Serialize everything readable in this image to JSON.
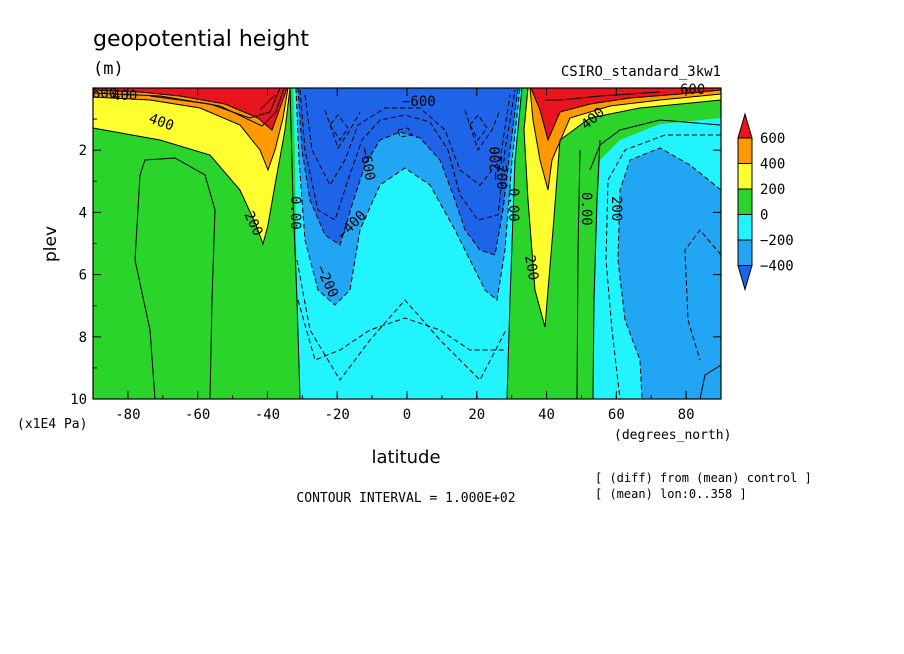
{
  "chart_data": {
    "type": "contour",
    "title": "geopotential height",
    "units": "(m)",
    "model": "CSIRO_standard_3kw1",
    "xlabel": "latitude",
    "x_units": "(degrees_north)",
    "ylabel": "plev",
    "y_units": "(x1E4 Pa)",
    "xlim": [
      -90,
      90
    ],
    "ylim": [
      10,
      0
    ],
    "x_ticks": [
      -80,
      -60,
      -40,
      -20,
      0,
      20,
      40,
      60,
      80
    ],
    "x_tick_labels": [
      "-80",
      "-60",
      "-40",
      "-20",
      "0",
      "20",
      "40",
      "60",
      "80"
    ],
    "y_ticks": [
      2,
      4,
      6,
      8,
      10
    ],
    "y_tick_labels": [
      "2",
      "4",
      "6",
      "8",
      "10"
    ],
    "contour_interval_text": "CONTOUR INTERVAL = 1.000E+02",
    "notes": [
      "[ (diff) from (mean) control ]",
      "[ (mean) lon:0..358 ]"
    ],
    "colorbar": {
      "labels": [
        "600",
        "400",
        "200",
        "0",
        "−200",
        "−400"
      ],
      "colors": [
        "#e8141e",
        "#ff9900",
        "#ffff30",
        "#2ad42a",
        "#22f4ff",
        "#22a6f4",
        "#1e64e8"
      ]
    },
    "contour_labels": [
      "600",
      "400",
      "400",
      "200",
      "0.00",
      "−600",
      "−600",
      "−400",
      "−200",
      "−200",
      "−200",
      "0.00",
      "400",
      "200",
      "0.00",
      "200",
      "600"
    ]
  }
}
